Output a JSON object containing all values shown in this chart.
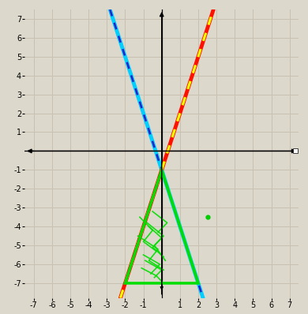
{
  "xlim": [
    -7.5,
    7.5
  ],
  "ylim": [
    -7.8,
    7.5
  ],
  "xticks": [
    -7,
    -6,
    -5,
    -4,
    -3,
    -2,
    -1,
    1,
    2,
    3,
    4,
    5,
    6,
    7
  ],
  "yticks": [
    -7,
    -6,
    -5,
    -4,
    -3,
    -2,
    -1,
    1,
    2,
    3,
    4,
    5,
    6,
    7
  ],
  "grid_color": "#c8c0b0",
  "bg_color": "#ddd8cc",
  "line1_slope": -3,
  "line1_intercept": -1,
  "line1_color_main": "#00cfff",
  "line1_color_dash": "#2222cc",
  "line2_slope": 3,
  "line2_intercept": -1,
  "line2_color_main": "#ff1100",
  "line2_color_dash": "#ffff00",
  "triangle_color": "#00dd00",
  "triangle_linewidth": 2.5,
  "dot_x": 2.5,
  "dot_y": -3.5,
  "dot_color": "#00cc00"
}
